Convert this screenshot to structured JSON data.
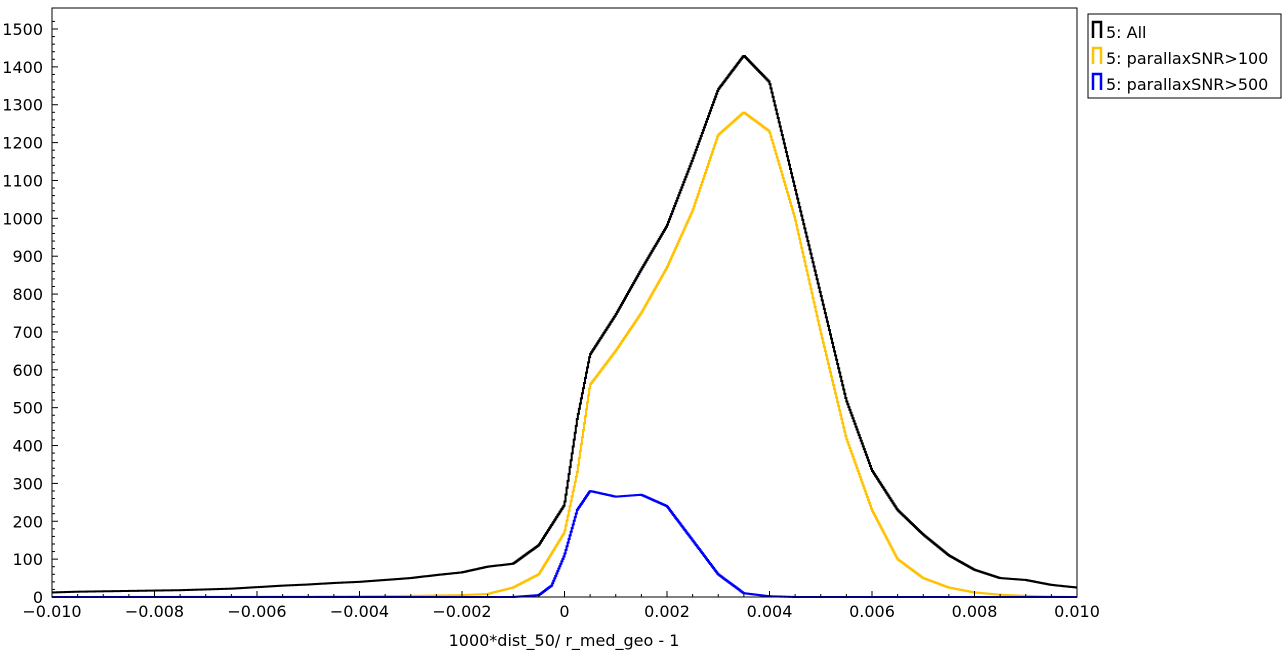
{
  "chart_data": {
    "type": "histogram",
    "title": "",
    "xlabel": "1000*dist_50/ r_med_geo - 1",
    "ylabel": "",
    "xlim": [
      -0.01,
      0.01
    ],
    "ylim": [
      0,
      1520
    ],
    "grid": false,
    "legend_position": "outside-top-right",
    "x_ticks": [
      -0.01,
      -0.008,
      -0.006,
      -0.004,
      -0.002,
      0,
      0.002,
      0.004,
      0.006,
      0.008,
      0.01
    ],
    "x_tick_labels": [
      "−0.010",
      "−0.008",
      "−0.006",
      "−0.004",
      "−0.002",
      "0",
      "0.002",
      "0.004",
      "0.006",
      "0.008",
      "0.010"
    ],
    "y_ticks": [
      0,
      100,
      200,
      300,
      400,
      500,
      600,
      700,
      800,
      900,
      1000,
      1100,
      1200,
      1300,
      1400,
      1500
    ],
    "y_tick_labels": [
      "0",
      "100",
      "200",
      "300",
      "400",
      "500",
      "600",
      "700",
      "800",
      "900",
      "1000",
      "1100",
      "1200",
      "1300",
      "1400",
      "1500"
    ],
    "series": [
      {
        "name": "5: All",
        "color": "#000000",
        "x": [
          -0.01,
          -0.0095,
          -0.009,
          -0.0085,
          -0.008,
          -0.0075,
          -0.007,
          -0.0065,
          -0.006,
          -0.0055,
          -0.005,
          -0.0045,
          -0.004,
          -0.0035,
          -0.003,
          -0.0025,
          -0.002,
          -0.0015,
          -0.001,
          -0.0005,
          0,
          0.00025,
          0.0005,
          0.001,
          0.0015,
          0.002,
          0.0025,
          0.003,
          0.0035,
          0.004,
          0.0045,
          0.005,
          0.0055,
          0.006,
          0.0065,
          0.007,
          0.0075,
          0.008,
          0.0085,
          0.009,
          0.0095,
          0.01
        ],
        "values": [
          12,
          14,
          15,
          16,
          17,
          18,
          20,
          22,
          26,
          30,
          33,
          37,
          40,
          45,
          50,
          58,
          65,
          80,
          88,
          137,
          243,
          470,
          640,
          745,
          865,
          980,
          1155,
          1340,
          1430,
          1360,
          1080,
          800,
          520,
          335,
          230,
          165,
          110,
          72,
          50,
          45,
          32,
          25
        ]
      },
      {
        "name": "5: parallaxSNR>100",
        "color": "#ffc200",
        "x": [
          -0.01,
          -0.005,
          -0.004,
          -0.003,
          -0.002,
          -0.0015,
          -0.001,
          -0.0005,
          0,
          0.00025,
          0.0005,
          0.001,
          0.0015,
          0.002,
          0.0025,
          0.003,
          0.0035,
          0.004,
          0.0045,
          0.005,
          0.0055,
          0.006,
          0.0065,
          0.007,
          0.0075,
          0.008,
          0.0085,
          0.009,
          0.0095,
          0.01
        ],
        "values": [
          0,
          1,
          2,
          3,
          5,
          8,
          25,
          60,
          170,
          330,
          560,
          650,
          750,
          870,
          1020,
          1220,
          1280,
          1230,
          1000,
          700,
          420,
          230,
          100,
          50,
          25,
          12,
          6,
          3,
          1,
          0
        ]
      },
      {
        "name": "5: parallaxSNR>500",
        "color": "#0000ff",
        "x": [
          -0.01,
          -0.001,
          -0.0005,
          -0.00025,
          0,
          0.00025,
          0.0005,
          0.001,
          0.0015,
          0.002,
          0.0025,
          0.003,
          0.0035,
          0.004,
          0.0045,
          0.01
        ],
        "values": [
          0,
          0,
          5,
          30,
          110,
          230,
          280,
          265,
          270,
          240,
          150,
          60,
          10,
          2,
          0,
          0
        ]
      }
    ]
  }
}
